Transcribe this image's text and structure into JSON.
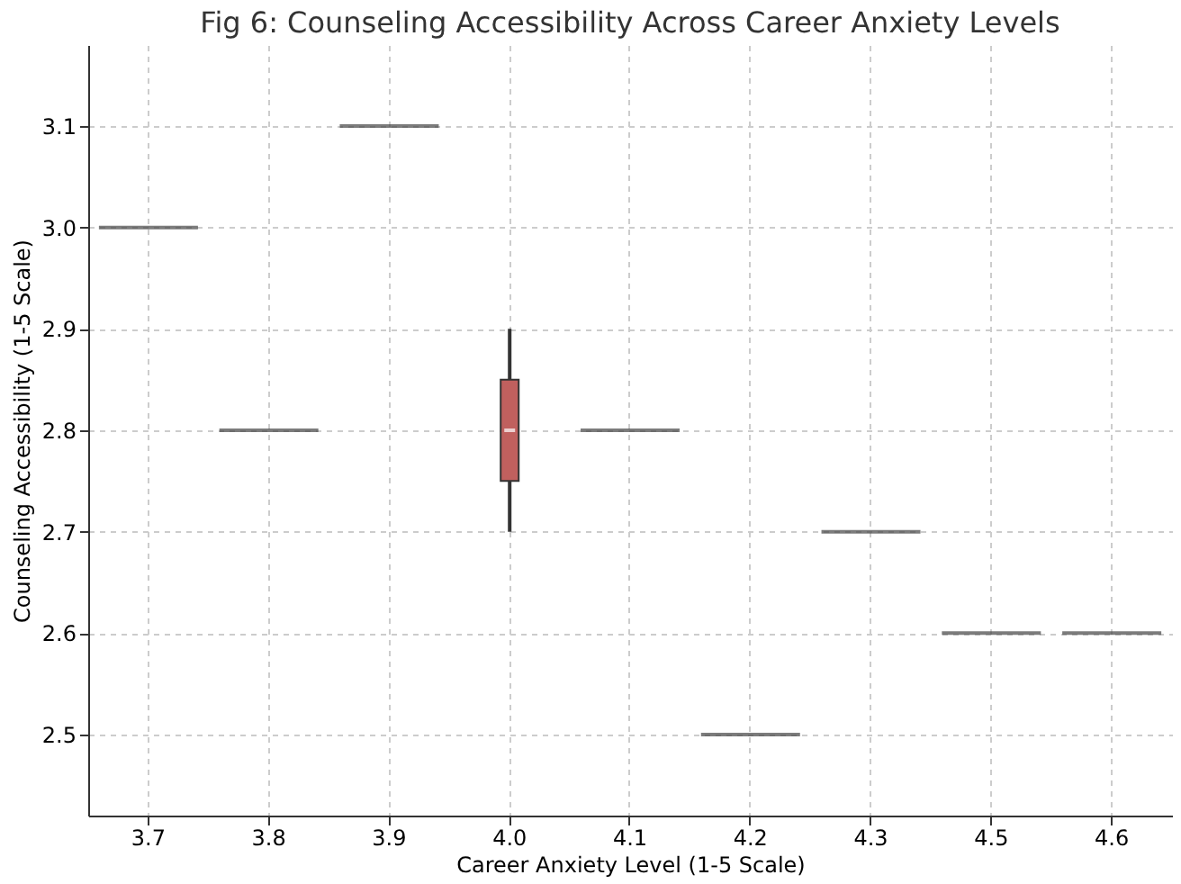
{
  "chart_data": {
    "type": "box",
    "title": "Fig 6: Counseling Accessibility Across Career Anxiety Levels",
    "xlabel": "Career Anxiety Level (1-5 Scale)",
    "ylabel": "Counseling Accessibility (1-5 Scale)",
    "categories": [
      "3.7",
      "3.8",
      "3.9",
      "4.0",
      "4.1",
      "4.2",
      "4.3",
      "4.5",
      "4.6"
    ],
    "boxes": [
      {
        "low": 3.0,
        "q1": 3.0,
        "median": 3.0,
        "q3": 3.0,
        "high": 3.0
      },
      {
        "low": 2.8,
        "q1": 2.8,
        "median": 2.8,
        "q3": 2.8,
        "high": 2.8
      },
      {
        "low": 3.1,
        "q1": 3.1,
        "median": 3.1,
        "q3": 3.1,
        "high": 3.1
      },
      {
        "low": 2.7,
        "q1": 2.75,
        "median": 2.8,
        "q3": 2.85,
        "high": 2.9
      },
      {
        "low": 2.8,
        "q1": 2.8,
        "median": 2.8,
        "q3": 2.8,
        "high": 2.8
      },
      {
        "low": 2.5,
        "q1": 2.5,
        "median": 2.5,
        "q3": 2.5,
        "high": 2.5
      },
      {
        "low": 2.7,
        "q1": 2.7,
        "median": 2.7,
        "q3": 2.7,
        "high": 2.7
      },
      {
        "low": 2.6,
        "q1": 2.6,
        "median": 2.6,
        "q3": 2.6,
        "high": 2.6
      },
      {
        "low": 2.6,
        "q1": 2.6,
        "median": 2.6,
        "q3": 2.6,
        "high": 2.6
      }
    ],
    "colors": [
      "#444444",
      "#444444",
      "#444444",
      "#c0605e",
      "#444444",
      "#444444",
      "#444444",
      "#444444",
      "#444444"
    ],
    "ylim": [
      2.42,
      3.18
    ],
    "yticks": [
      2.5,
      2.6,
      2.7,
      2.8,
      2.9,
      {
        "value": 3.0,
        "label": "3.0"
      },
      3.1
    ],
    "grid": true
  }
}
